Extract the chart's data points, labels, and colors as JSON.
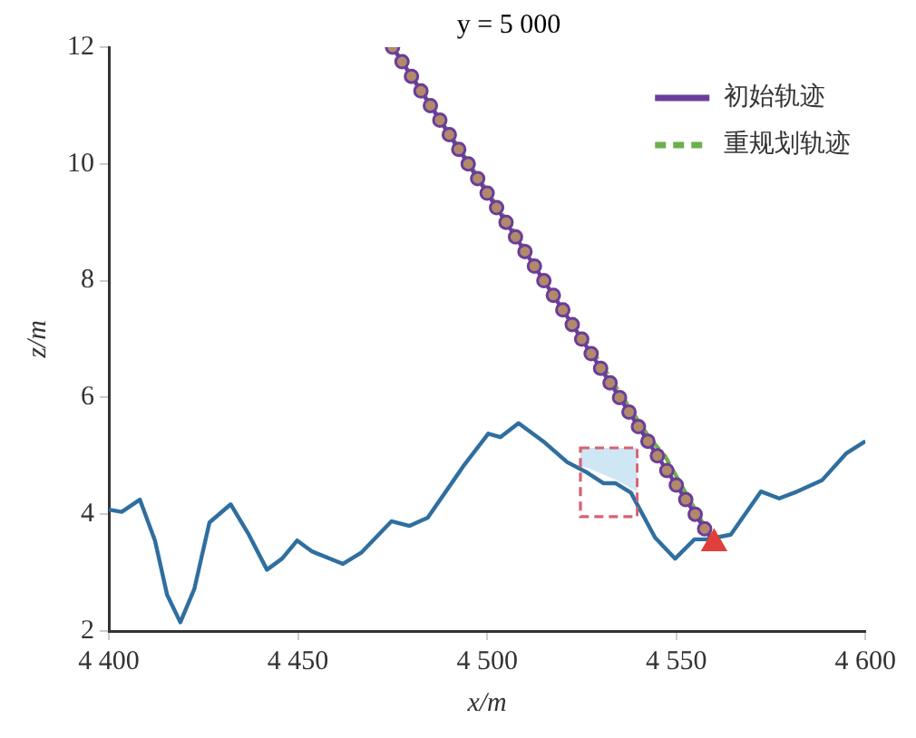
{
  "chart_data": {
    "type": "line",
    "xlabel": "x/m",
    "ylabel": "z/m",
    "xlim": [
      4400,
      4600
    ],
    "xticks": [
      {
        "value": 4400,
        "label": "4 400"
      },
      {
        "value": 4450,
        "label": "4 450"
      },
      {
        "value": 4500,
        "label": "4 500"
      },
      {
        "value": 4550,
        "label": "4 550"
      },
      {
        "value": 4600,
        "label": "4 600"
      }
    ],
    "ylim": [
      2,
      12
    ],
    "yticks": [
      2,
      4,
      6,
      8,
      10,
      12
    ],
    "grid": false,
    "legend": "top right",
    "annotations": [
      "y = 5 000"
    ],
    "series": [
      {
        "color": "#2f6f9f",
        "marker": "none",
        "line_style": "solid",
        "x": [
          4400,
          4403.4,
          4408.2,
          4412.2,
          4415.4,
          4418.9,
          4422.6,
          4426.6,
          4432.2,
          4437,
          4441.8,
          4445.8,
          4449.8,
          4453.8,
          4461.9,
          4466.7,
          4474.7,
          4479.5,
          4484.3,
          4493.9,
          4500.3,
          4503.5,
          4508.3,
          4514.8,
          4521.2,
          4526,
          4530.8,
          4534,
          4538,
          4544.4,
          4549.7,
          4554.8,
          4558,
          4564.4,
          4572.4,
          4577.2,
          4582,
          4588.5,
          4594.9,
          4600
        ],
        "values": [
          4.08,
          4.04,
          4.25,
          3.55,
          2.62,
          2.15,
          2.72,
          3.86,
          4.17,
          3.65,
          3.05,
          3.24,
          3.55,
          3.36,
          3.15,
          3.34,
          3.88,
          3.8,
          3.94,
          4.84,
          5.38,
          5.32,
          5.56,
          5.25,
          4.89,
          4.73,
          4.53,
          4.53,
          4.37,
          3.6,
          3.24,
          3.57,
          3.57,
          3.65,
          4.39,
          4.27,
          4.39,
          4.58,
          5.04,
          5.25
        ]
      },
      {
        "name": "重规划轨迹",
        "color": "#6ab04c",
        "marker": "none",
        "line_style": "dashed",
        "x": [
          4475,
          4543,
          4547,
          4560
        ],
        "values": [
          12,
          5.3,
          5.0,
          3.5
        ]
      },
      {
        "name": "初始轨迹",
        "color": "#6a3d9a",
        "marker": "circle",
        "line_style": "solid",
        "x": [
          4475,
          4477.5,
          4480,
          4482.5,
          4485,
          4487.5,
          4490,
          4492.5,
          4495,
          4497.5,
          4500,
          4502.5,
          4505,
          4507.5,
          4510,
          4512.5,
          4515,
          4517.5,
          4520,
          4522.5,
          4525,
          4527.5,
          4530,
          4532.5,
          4535,
          4537.5,
          4540,
          4542.5,
          4545,
          4547.5,
          4550,
          4552.5,
          4555,
          4557.5,
          4560
        ],
        "values": [
          12,
          11.75,
          11.5,
          11.25,
          11,
          10.75,
          10.5,
          10.25,
          10,
          9.75,
          9.5,
          9.25,
          9,
          8.75,
          8.5,
          8.25,
          8,
          7.75,
          7.5,
          7.25,
          7,
          6.75,
          6.5,
          6.25,
          6,
          5.75,
          5.5,
          5.25,
          5,
          4.75,
          4.5,
          4.25,
          4,
          3.75,
          3.5
        ]
      },
      {
        "type": "scatter",
        "color": "#e0403a",
        "marker": "triangle",
        "x": [
          4560
        ],
        "values": [
          3.5
        ]
      }
    ]
  }
}
